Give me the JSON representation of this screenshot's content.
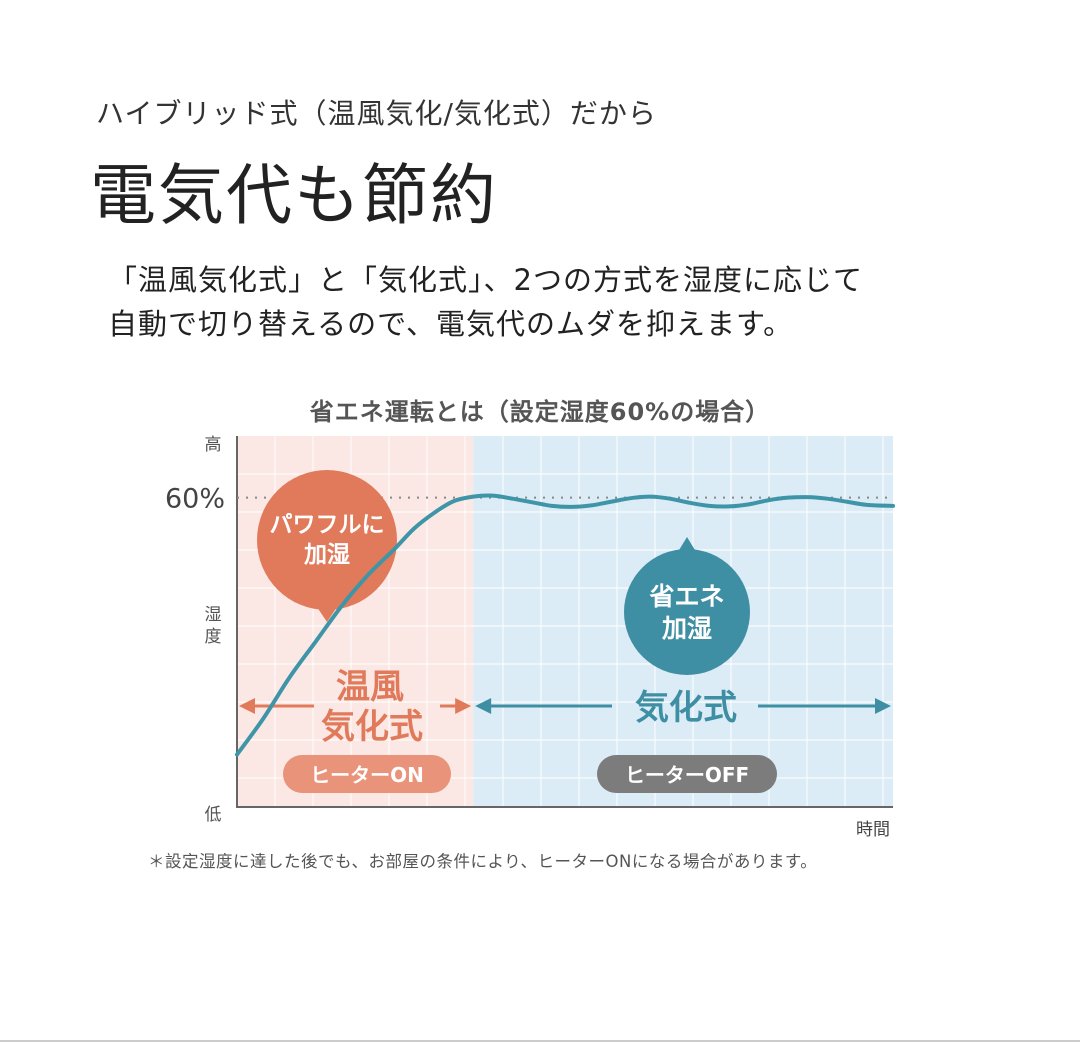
{
  "header": {
    "subtitle": "ハイブリッド式（温風気化/気化式）だから",
    "headline": "電気代も節約"
  },
  "description": {
    "line1": "「温風気化式」と「気化式」、2つの方式を湿度に応じて",
    "line2": "自動で切り替えるので、電気代のムダを抑えます。"
  },
  "chart_data": {
    "type": "line",
    "title": "省エネ運転とは（設定湿度60%の場合）",
    "xlabel": "時間",
    "ylabel": "湿度",
    "y_high_label": "高",
    "y_low_label": "低",
    "y_reference_label": "60%",
    "y_reference_value": 60,
    "grid": true,
    "regions": [
      {
        "mode_label_lines": [
          "温風",
          "気化式"
        ],
        "heater_label": "ヒーターON",
        "bubble_lines": [
          "パワフルに",
          "加湿"
        ],
        "color": "#e07a5a",
        "bg_color": "#fbe7e4",
        "pill_color": "#e8937a"
      },
      {
        "mode_label": "気化式",
        "heater_label": "ヒーターOFF",
        "bubble_lines": [
          "省エネ",
          "加湿"
        ],
        "color": "#3f8fa4",
        "bg_color": "#dcecf6",
        "pill_color": "#7c7c7c"
      }
    ],
    "series": [
      {
        "color": "#3f95a8",
        "points": [
          [
            0,
            10
          ],
          [
            4,
            17
          ],
          [
            8,
            25
          ],
          [
            12,
            32
          ],
          [
            16,
            39
          ],
          [
            20,
            45
          ],
          [
            24,
            50
          ],
          [
            27,
            54
          ],
          [
            30,
            57
          ],
          [
            33,
            59.3
          ],
          [
            36,
            60.2
          ],
          [
            39,
            60.4
          ],
          [
            42,
            59.8
          ],
          [
            45,
            59.1
          ],
          [
            48,
            58.4
          ],
          [
            51,
            58.2
          ],
          [
            54,
            58.5
          ],
          [
            57,
            59.2
          ],
          [
            60,
            59.9
          ],
          [
            63,
            60.2
          ],
          [
            66,
            59.8
          ],
          [
            69,
            59.0
          ],
          [
            72,
            58.4
          ],
          [
            75,
            58.3
          ],
          [
            78,
            58.7
          ],
          [
            81,
            59.5
          ],
          [
            84,
            60.0
          ],
          [
            87,
            60.1
          ],
          [
            90,
            59.8
          ],
          [
            93,
            59.2
          ],
          [
            96,
            58.6
          ],
          [
            100,
            58.4
          ]
        ]
      }
    ],
    "switch_x": 36
  },
  "footnote": "＊設定湿度に達した後でも、お部屋の条件により、ヒーターONになる場合があります。"
}
